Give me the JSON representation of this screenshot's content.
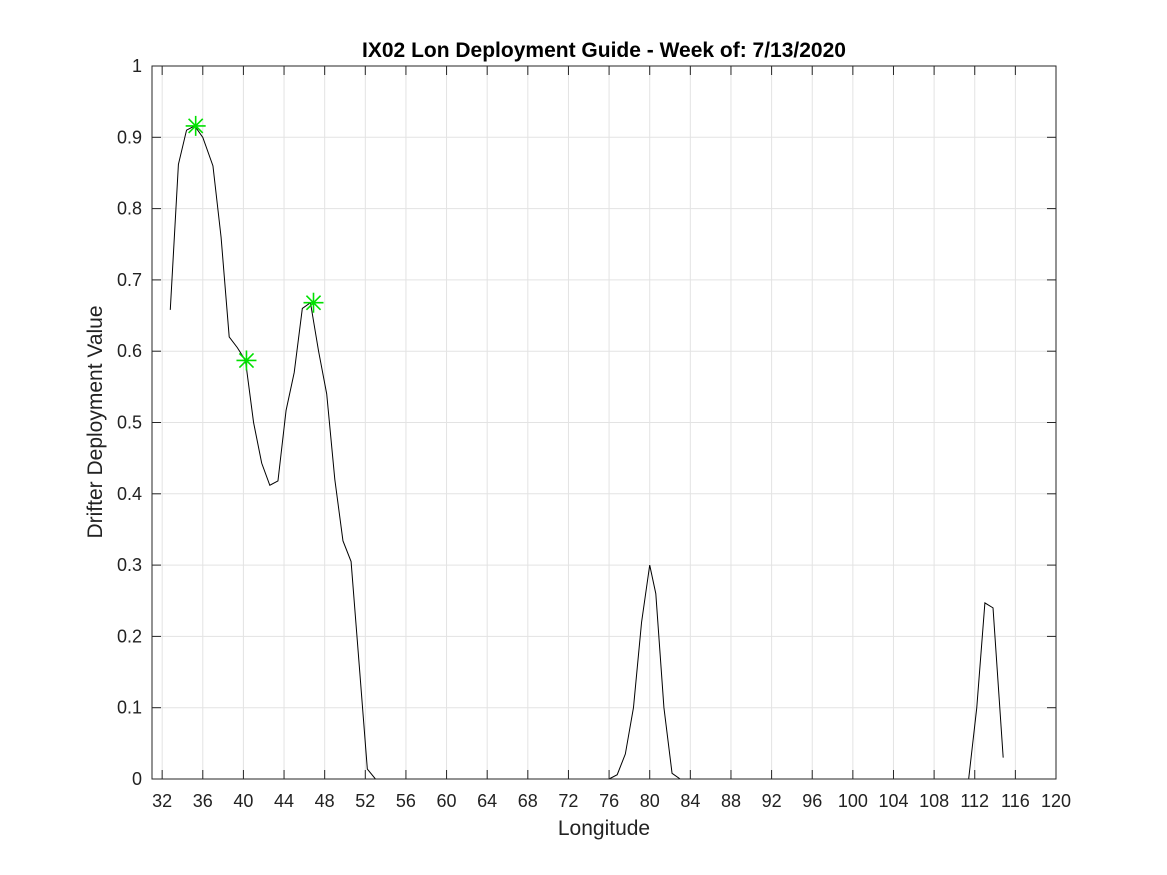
{
  "chart_data": {
    "type": "line",
    "title": "IX02 Lon Deployment Guide - Week of: 7/13/2020",
    "xlabel": "Longitude",
    "ylabel": "Drifter Deployment Value",
    "xlim": [
      31,
      120
    ],
    "ylim": [
      0,
      1
    ],
    "xticks": [
      32,
      36,
      40,
      44,
      48,
      52,
      56,
      60,
      64,
      68,
      72,
      76,
      80,
      84,
      88,
      92,
      96,
      100,
      104,
      108,
      112,
      116,
      120
    ],
    "yticks": [
      0,
      0.1,
      0.2,
      0.3,
      0.4,
      0.5,
      0.6,
      0.7,
      0.8,
      0.9,
      1
    ],
    "grid": true,
    "line_color": "#000000",
    "series": [
      {
        "x": [
          32.8,
          33.6,
          34.4,
          35.2,
          36.0,
          37.0,
          37.8,
          38.6,
          39.4,
          40.2,
          41.0,
          41.8,
          42.6,
          43.4,
          44.2,
          45.0,
          45.8,
          46.6,
          47.4,
          48.2,
          49.0,
          49.8,
          50.6,
          51.4,
          52.2,
          53.0,
          53.8,
          56,
          60,
          64,
          68,
          72,
          76,
          76.8,
          77.6,
          78.4,
          79.2,
          80.0,
          80.6,
          81.4,
          82.2,
          83.0,
          83.8,
          84.6,
          88,
          92,
          96,
          100,
          104,
          108,
          110.4,
          111.4,
          112.2,
          113.0,
          113.8,
          114.8
        ],
        "values": [
          0.658,
          0.862,
          0.91,
          0.916,
          0.9,
          0.86,
          0.76,
          0.62,
          0.605,
          0.587,
          0.5,
          0.443,
          0.412,
          0.418,
          0.517,
          0.57,
          0.66,
          0.668,
          0.6,
          0.54,
          0.42,
          0.334,
          0.305,
          0.16,
          0.014,
          0.0,
          0.0,
          0.0,
          0.0,
          0.0,
          0.0,
          0.0,
          0.0,
          0.006,
          0.035,
          0.1,
          0.22,
          0.3,
          0.26,
          0.1,
          0.008,
          0.0,
          0.0,
          0.0,
          0.0,
          0.0,
          0.0,
          0.0,
          0.0,
          0.0,
          0.0,
          0.0,
          0.1,
          0.247,
          0.24,
          0.03
        ]
      }
    ],
    "markers": {
      "symbol": "*",
      "color": "#00e000",
      "points": [
        {
          "x": 35.3,
          "y": 0.916
        },
        {
          "x": 40.3,
          "y": 0.587
        },
        {
          "x": 46.9,
          "y": 0.668
        }
      ]
    }
  }
}
